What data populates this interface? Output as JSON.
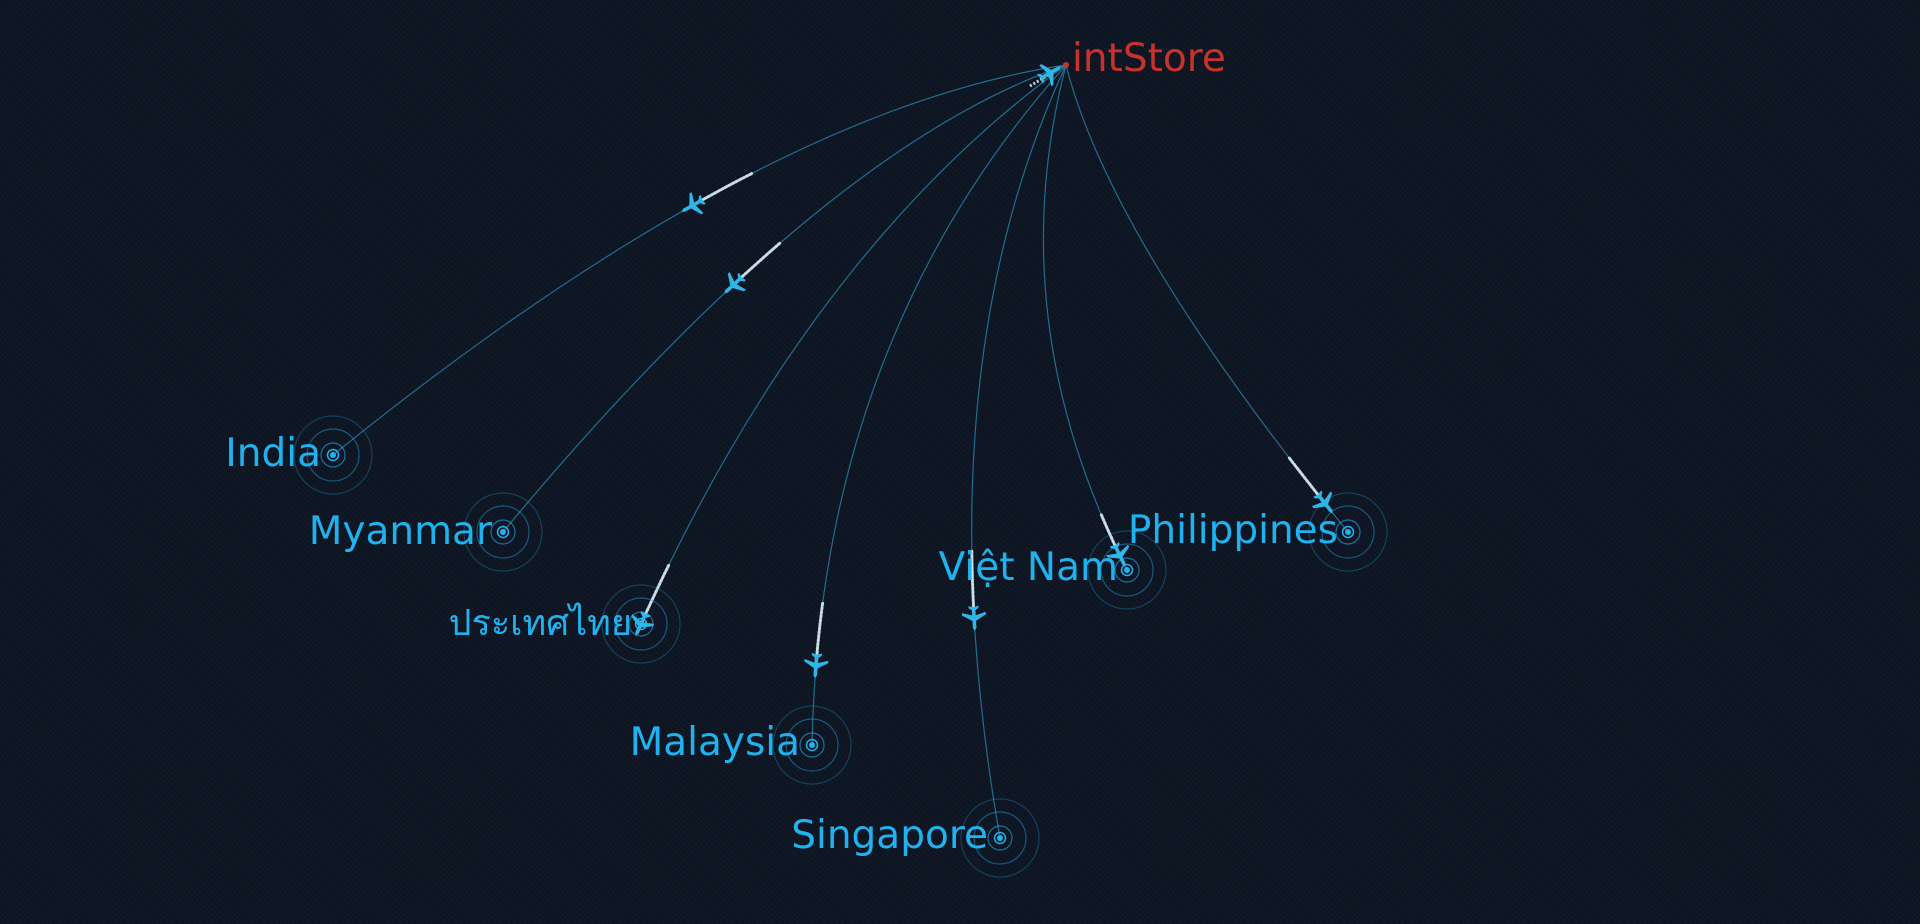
{
  "colors": {
    "background": "#0e1624",
    "route": "#2fb6e8",
    "node": "#1fb2ee",
    "origin_label": "#c8322d",
    "dest_label": "#1fb2ee",
    "plane": "#2fb6e8"
  },
  "origin": {
    "label": "intStore",
    "marker": "origin-dot"
  },
  "destinations": [
    {
      "label": "India"
    },
    {
      "label": "Myanmar"
    },
    {
      "label": "ประเทศไทย"
    },
    {
      "label": "Malaysia"
    },
    {
      "label": "Singapore"
    },
    {
      "label": "Việt Nam"
    },
    {
      "label": "Philippines"
    }
  ],
  "icons": {
    "plane": "airplane-icon",
    "node": "ripple-target-icon"
  }
}
